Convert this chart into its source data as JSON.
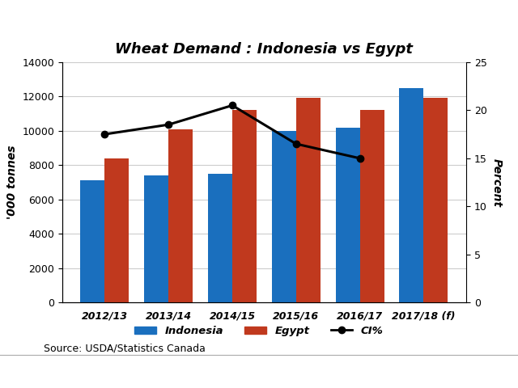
{
  "categories": [
    "2012/13",
    "2013/14",
    "2014/15",
    "2015/16",
    "2016/17",
    "2017/18 (f)"
  ],
  "indonesia": [
    7100,
    7400,
    7500,
    10000,
    10200,
    12500
  ],
  "egypt": [
    8400,
    10100,
    11200,
    11900,
    11200,
    11900
  ],
  "ci_percent": [
    17.5,
    18.5,
    20.5,
    16.5,
    15.0
  ],
  "ci_x_indices": [
    0,
    1,
    2,
    3,
    4
  ],
  "indonesia_color": "#1a6fbe",
  "egypt_color": "#c0391e",
  "line_color": "#000000",
  "title": "Wheat Demand : Indonesia vs Egypt",
  "ylabel_left": "'000 tonnes",
  "ylabel_right": "Percent",
  "ylim_left": [
    0,
    14000
  ],
  "ylim_right": [
    0,
    25
  ],
  "yticks_left": [
    0,
    2000,
    4000,
    6000,
    8000,
    10000,
    12000,
    14000
  ],
  "yticks_right": [
    0,
    5,
    10,
    15,
    20,
    25
  ],
  "source_text": "Source: USDA/Statistics Canada",
  "bar_width": 0.38
}
